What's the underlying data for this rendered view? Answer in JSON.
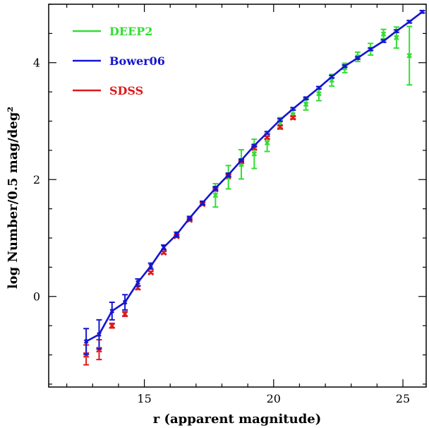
{
  "chart_data": {
    "type": "line",
    "xlabel": "r (apparent magnitude)",
    "ylabel": "log Number/0.5 mag/deg²",
    "xlim": [
      11.3,
      25.9
    ],
    "ylim": [
      -1.55,
      5.0
    ],
    "x_ticks": [
      15,
      20,
      25
    ],
    "y_ticks": [
      0,
      2,
      4
    ],
    "grid": false,
    "legend_placement": "top-left",
    "colors": {
      "DEEP2": "#33dd33",
      "Bower06": "#1515d0",
      "SDSS": "#dd1a1a"
    },
    "series": [
      {
        "name": "DEEP2",
        "style": "errorbar",
        "x": [
          17.75,
          18.25,
          18.75,
          19.25,
          19.75,
          20.25,
          20.75,
          21.25,
          21.75,
          22.25,
          22.75,
          23.25,
          23.75,
          24.25,
          24.75,
          25.25
        ],
        "y": [
          1.73,
          2.04,
          2.26,
          2.44,
          2.63,
          2.96,
          3.11,
          3.29,
          3.47,
          3.7,
          3.91,
          4.1,
          4.23,
          4.49,
          4.43,
          4.12
        ],
        "yerr": [
          0.2,
          0.2,
          0.25,
          0.25,
          0.15,
          0.1,
          0.08,
          0.1,
          0.12,
          0.1,
          0.08,
          0.08,
          0.1,
          0.08,
          0.18,
          0.5
        ]
      },
      {
        "name": "Bower06",
        "style": "line+errorbar",
        "x": [
          12.75,
          13.25,
          13.75,
          14.25,
          14.75,
          15.25,
          15.75,
          16.25,
          16.75,
          17.25,
          17.75,
          18.25,
          18.75,
          19.25,
          19.75,
          20.25,
          20.75,
          21.25,
          21.75,
          22.25,
          22.75,
          23.25,
          23.75,
          24.25,
          24.75,
          25.25,
          25.75
        ],
        "y": [
          -0.77,
          -0.65,
          -0.25,
          -0.1,
          0.24,
          0.52,
          0.84,
          1.06,
          1.34,
          1.6,
          1.85,
          2.08,
          2.33,
          2.58,
          2.8,
          3.02,
          3.21,
          3.39,
          3.57,
          3.76,
          3.94,
          4.08,
          4.23,
          4.37,
          4.54,
          4.7,
          4.87
        ],
        "yerr": [
          0.22,
          0.25,
          0.15,
          0.13,
          0.06,
          0.05,
          0.04,
          0.04,
          0.03,
          0.03,
          0.03,
          0.03,
          0.02,
          0.02,
          0.02,
          0.02,
          0.02,
          0.02,
          0.02,
          0.02,
          0.02,
          0.02,
          0.02,
          0.02,
          0.02,
          0.02,
          0.02
        ]
      },
      {
        "name": "SDSS",
        "style": "markers",
        "x": [
          12.75,
          13.25,
          13.75,
          14.25,
          14.75,
          15.25,
          15.75,
          16.25,
          16.75,
          17.25,
          17.75,
          18.25,
          18.75,
          19.25,
          19.75,
          20.25,
          20.75
        ],
        "y": [
          -1.0,
          -0.91,
          -0.5,
          -0.3,
          0.15,
          0.41,
          0.75,
          1.03,
          1.31,
          1.58,
          1.83,
          2.06,
          2.31,
          2.54,
          2.72,
          2.9,
          3.06
        ],
        "yerr": [
          0.17,
          0.17,
          0.04,
          0.04,
          0.03,
          0.02,
          0.02,
          0.02,
          0.02,
          0.02,
          0.02,
          0.02,
          0.02,
          0.02,
          0.02,
          0.02,
          0.02
        ]
      }
    ]
  }
}
